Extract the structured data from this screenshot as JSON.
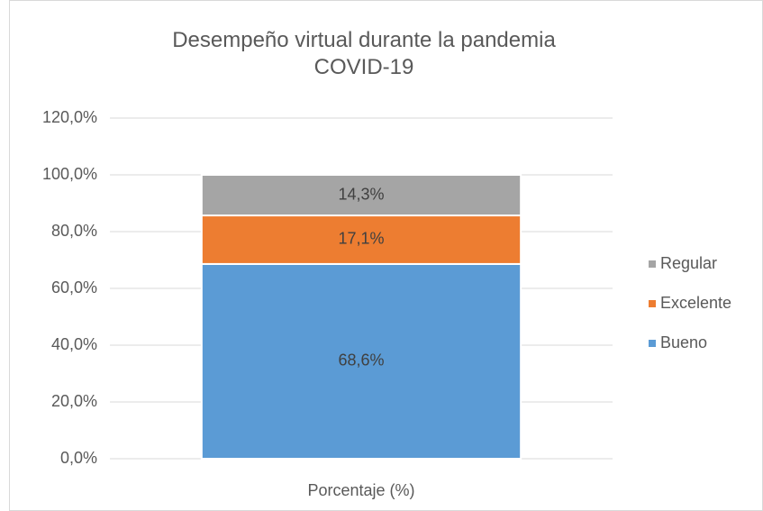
{
  "chart_data": {
    "type": "stacked_bar",
    "title": "Desempeño virtual durante la pandemia COVID-19",
    "categories": [
      "Porcentaje (%)"
    ],
    "series": [
      {
        "name": "Bueno",
        "color": "#5b9bd5",
        "values": [
          68.6
        ],
        "value_labels": [
          "68,6%"
        ]
      },
      {
        "name": "Excelente",
        "color": "#ed7d31",
        "values": [
          17.1
        ],
        "value_labels": [
          "17,1%"
        ]
      },
      {
        "name": "Regular",
        "color": "#a5a5a5",
        "values": [
          14.3
        ],
        "value_labels": [
          "14,3%"
        ]
      }
    ],
    "ylim": [
      0,
      120
    ],
    "yticks": [
      {
        "value": 0,
        "label": "0,0%"
      },
      {
        "value": 20,
        "label": "20,0%"
      },
      {
        "value": 40,
        "label": "40,0%"
      },
      {
        "value": 60,
        "label": "60,0%"
      },
      {
        "value": 80,
        "label": "80,0%"
      },
      {
        "value": 100,
        "label": "100,0%"
      },
      {
        "value": 120,
        "label": "120,0%"
      }
    ],
    "grid": true,
    "legend": "right"
  }
}
